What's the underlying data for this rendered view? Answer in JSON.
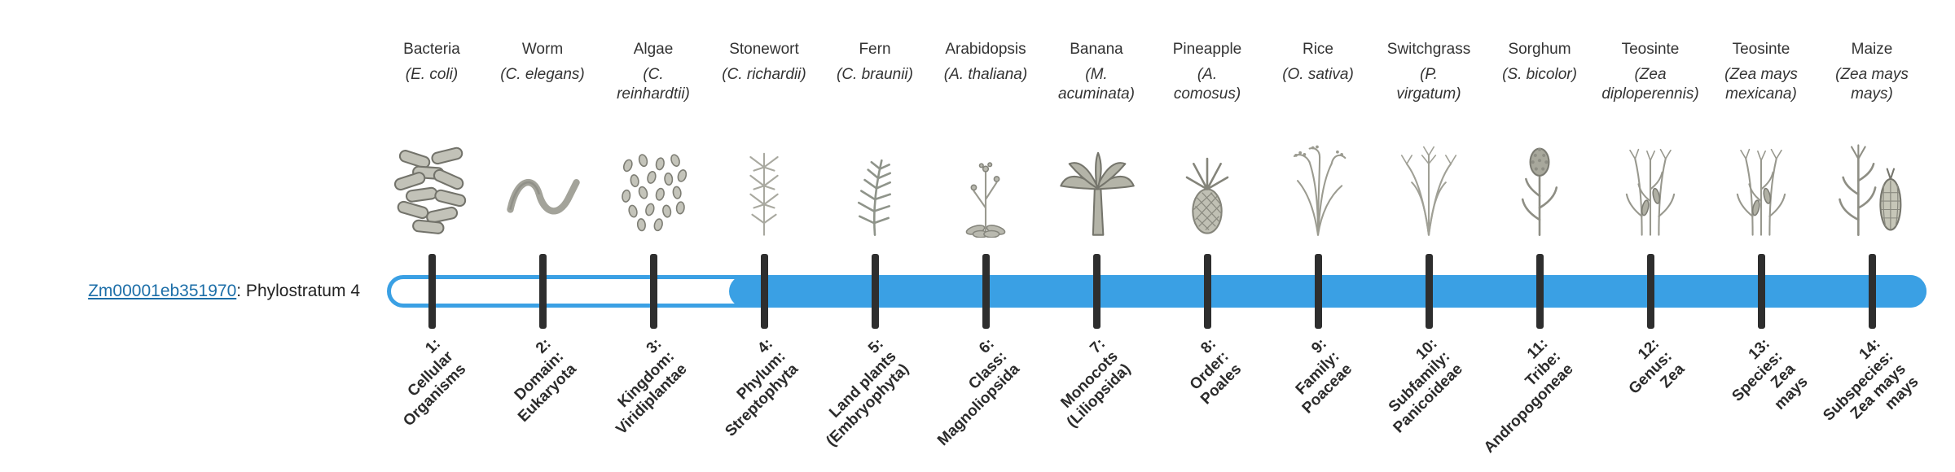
{
  "gene": {
    "id": "Zm00001eb351970",
    "label_suffix": ": Phylostratum 4"
  },
  "track": {
    "filled_from_stratum": 4,
    "total_strata": 14
  },
  "colors": {
    "track_blue": "#3aa0e4",
    "tick": "#2e2e2e",
    "link": "#1c6ea8",
    "text": "#333333"
  },
  "strata": [
    {
      "organism": "Bacteria",
      "scientific": "(E. coli)",
      "icon": "bacteria-icon",
      "stratum_label": "1:\nCellular\nOrganisms"
    },
    {
      "organism": "Worm",
      "scientific": "(C. elegans)",
      "icon": "worm-icon",
      "stratum_label": "2:\nDomain:\nEukaryota"
    },
    {
      "organism": "Algae",
      "scientific": "(C.\nreinhardtii)",
      "icon": "algae-icon",
      "stratum_label": "3:\nKingdom:\nViridiplantae"
    },
    {
      "organism": "Stonewort",
      "scientific": "(C. richardii)",
      "icon": "stonewort-icon",
      "stratum_label": "4:\nPhylum:\nStreptophyta"
    },
    {
      "organism": "Fern",
      "scientific": "(C. braunii)",
      "icon": "fern-icon",
      "stratum_label": "5:\nLand plants\n(Embryophyta)"
    },
    {
      "organism": "Arabidopsis",
      "scientific": "(A. thaliana)",
      "icon": "arabidopsis-icon",
      "stratum_label": "6:\nClass:\nMagnoliopsida"
    },
    {
      "organism": "Banana",
      "scientific": "(M.\nacuminata)",
      "icon": "banana-plant-icon",
      "stratum_label": "7:\nMonocots\n(Liliopsida)"
    },
    {
      "organism": "Pineapple",
      "scientific": "(A.\ncomosus)",
      "icon": "pineapple-icon",
      "stratum_label": "8:\nOrder:\nPoales"
    },
    {
      "organism": "Rice",
      "scientific": "(O. sativa)",
      "icon": "rice-plant-icon",
      "stratum_label": "9:\nFamily:\nPoaceae"
    },
    {
      "organism": "Switchgrass",
      "scientific": "(P.\nvirgatum)",
      "icon": "switchgrass-icon",
      "stratum_label": "10:\nSubfamily:\nPanicoideae"
    },
    {
      "organism": "Sorghum",
      "scientific": "(S. bicolor)",
      "icon": "sorghum-icon",
      "stratum_label": "11:\nTribe:\nAndropogoneae"
    },
    {
      "organism": "Teosinte",
      "scientific": "(Zea\ndiploperennis)",
      "icon": "teosinte-icon",
      "stratum_label": "12:\nGenus:\nZea"
    },
    {
      "organism": "Teosinte",
      "scientific": "(Zea mays\nmexicana)",
      "icon": "teosinte-icon",
      "stratum_label": "13:\nSpecies:\nZea\nmays"
    },
    {
      "organism": "Maize",
      "scientific": "(Zea mays\nmays)",
      "icon": "maize-icon",
      "stratum_label": "14:\nSubspecies:\nZea mays\nmays"
    }
  ]
}
